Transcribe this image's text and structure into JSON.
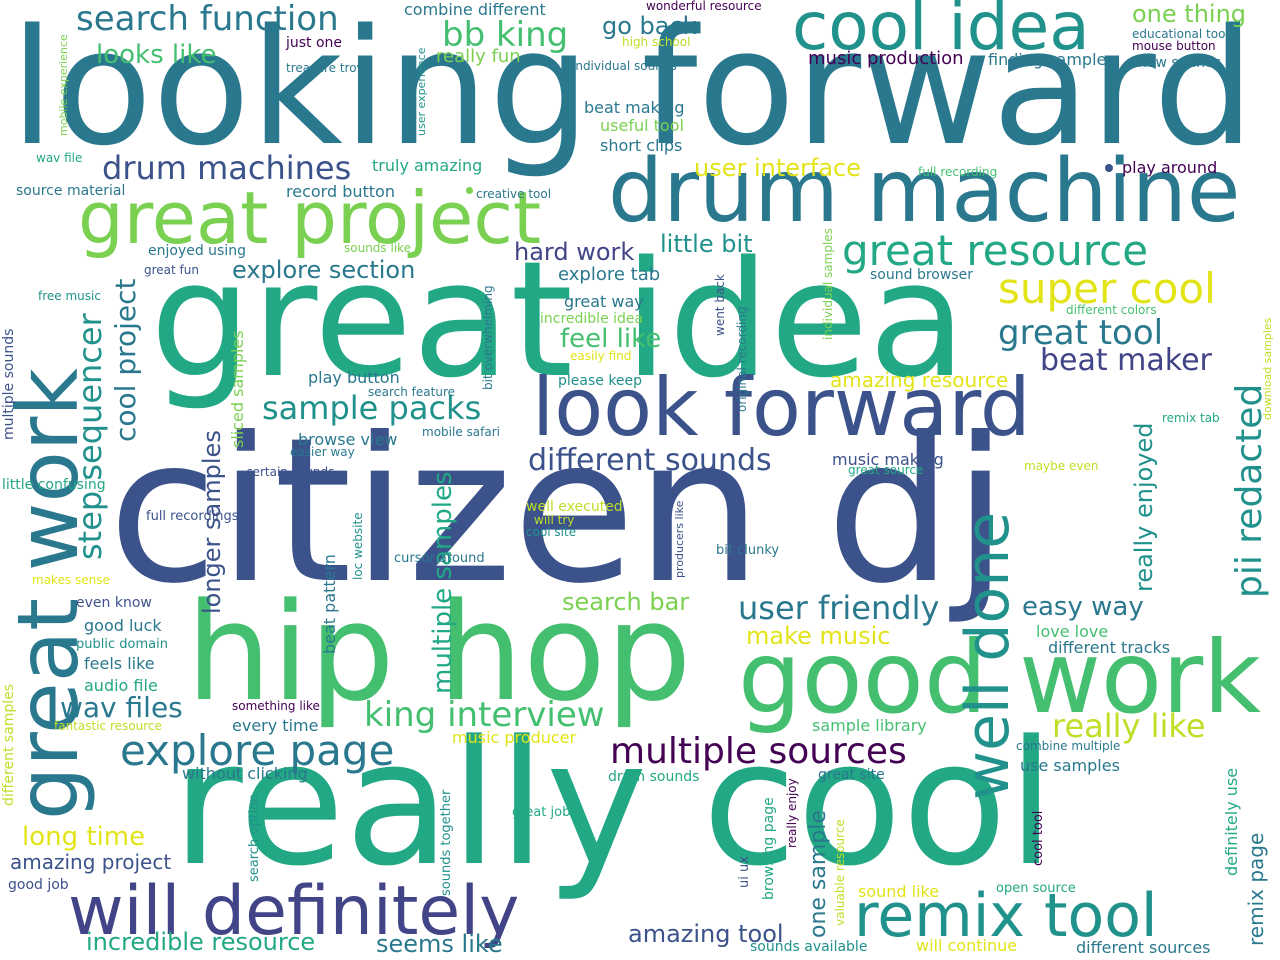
{
  "palette": {
    "dark_purple": "#440154",
    "indigo": "#414487",
    "blue": "#3b528b",
    "steel": "#31688e",
    "teal": "#2a788e",
    "sea": "#21918c",
    "green_teal": "#22a884",
    "green": "#44bf70",
    "light_green": "#7ad151",
    "lime": "#bddf26",
    "yellow": "#e2e418"
  },
  "words": [
    {
      "text": "looking forward"
    },
    {
      "text": "citizen dj"
    },
    {
      "text": "really cool"
    },
    {
      "text": "great idea"
    },
    {
      "text": "hip hop"
    },
    {
      "text": "drum machine"
    },
    {
      "text": "good work"
    },
    {
      "text": "look forward"
    },
    {
      "text": "great work"
    },
    {
      "text": "great project"
    },
    {
      "text": "cool idea"
    },
    {
      "text": "will definitely"
    },
    {
      "text": "remix tool"
    },
    {
      "text": "well done"
    },
    {
      "text": "explore page"
    },
    {
      "text": "great resource"
    },
    {
      "text": "super cool"
    },
    {
      "text": "multiple sources"
    },
    {
      "text": "king interview"
    },
    {
      "text": "pii redacted"
    },
    {
      "text": "step sequencer"
    },
    {
      "text": "search function"
    },
    {
      "text": "drum machines"
    },
    {
      "text": "different sounds"
    },
    {
      "text": "user friendly"
    },
    {
      "text": "sample packs"
    },
    {
      "text": "great tool"
    },
    {
      "text": "really like"
    },
    {
      "text": "bb king"
    },
    {
      "text": "cool project"
    },
    {
      "text": "beat maker"
    },
    {
      "text": "multiple samples"
    },
    {
      "text": "longer samples"
    },
    {
      "text": "wav files"
    },
    {
      "text": "feel like"
    },
    {
      "text": "easy way"
    },
    {
      "text": "looks like"
    },
    {
      "text": "long time"
    },
    {
      "text": "really enjoyed"
    },
    {
      "text": "explore section"
    },
    {
      "text": "hard work"
    },
    {
      "text": "one thing"
    },
    {
      "text": "go back"
    },
    {
      "text": "user interface"
    },
    {
      "text": "little bit"
    },
    {
      "text": "search bar"
    },
    {
      "text": "make music"
    },
    {
      "text": "incredible resource"
    },
    {
      "text": "seems like"
    },
    {
      "text": "amazing tool"
    },
    {
      "text": "one sample"
    },
    {
      "text": "remix page"
    },
    {
      "text": "amazing project"
    },
    {
      "text": "amazing resource"
    },
    {
      "text": "really fun"
    },
    {
      "text": "music production"
    },
    {
      "text": "finding samples"
    },
    {
      "text": "combine different"
    },
    {
      "text": "explore tab"
    },
    {
      "text": "great way"
    },
    {
      "text": "beat making"
    },
    {
      "text": "useful tool"
    },
    {
      "text": "short clips"
    },
    {
      "text": "truly amazing"
    },
    {
      "text": "record button"
    },
    {
      "text": "play button"
    },
    {
      "text": "browse view"
    },
    {
      "text": "music making"
    },
    {
      "text": "incredible idea"
    },
    {
      "text": "please keep"
    },
    {
      "text": "source material"
    },
    {
      "text": "enjoyed using"
    },
    {
      "text": "just one"
    },
    {
      "text": "new sounds"
    },
    {
      "text": "play around"
    },
    {
      "text": "sound browser"
    },
    {
      "text": "well executed"
    },
    {
      "text": "love love"
    },
    {
      "text": "different tracks"
    },
    {
      "text": "sample library"
    },
    {
      "text": "music producer"
    },
    {
      "text": "use samples"
    },
    {
      "text": "great site"
    },
    {
      "text": "drum sounds"
    },
    {
      "text": "without clicking"
    },
    {
      "text": "every time"
    },
    {
      "text": "audio file"
    },
    {
      "text": "feels like"
    },
    {
      "text": "good luck"
    },
    {
      "text": "even know"
    },
    {
      "text": "beat pattern"
    },
    {
      "text": "sliced samples"
    },
    {
      "text": "full recordings"
    },
    {
      "text": "little confusing"
    },
    {
      "text": "multiple sounds"
    },
    {
      "text": "different samples"
    },
    {
      "text": "good job"
    },
    {
      "text": "public domain"
    },
    {
      "text": "cursor around"
    },
    {
      "text": "bit clunky"
    },
    {
      "text": "sound like"
    },
    {
      "text": "will continue"
    },
    {
      "text": "different sources"
    },
    {
      "text": "sounds available"
    },
    {
      "text": "great job"
    },
    {
      "text": "definitely use"
    },
    {
      "text": "cool tool"
    },
    {
      "text": "open source"
    },
    {
      "text": "ui ux"
    },
    {
      "text": "browsing page"
    },
    {
      "text": "really enjoy"
    },
    {
      "text": "valuable resource"
    },
    {
      "text": "search option"
    },
    {
      "text": "sounds together"
    },
    {
      "text": "combine multiple"
    },
    {
      "text": "something like"
    },
    {
      "text": "fantastic resource"
    },
    {
      "text": "makes sense"
    },
    {
      "text": "wonderful resource"
    },
    {
      "text": "high school"
    },
    {
      "text": "educational tool"
    },
    {
      "text": "mouse button"
    },
    {
      "text": "individual sounds"
    },
    {
      "text": "treasure trove"
    },
    {
      "text": "mobile experience"
    },
    {
      "text": "user experience"
    },
    {
      "text": "wav file"
    },
    {
      "text": "full recording"
    },
    {
      "text": "creative tool"
    },
    {
      "text": "sounds like"
    },
    {
      "text": "great fun"
    },
    {
      "text": "free music"
    },
    {
      "text": "easily find"
    },
    {
      "text": "bit overwhelming"
    },
    {
      "text": "went back"
    },
    {
      "text": "original recording"
    },
    {
      "text": "individual samples"
    },
    {
      "text": "different colors"
    },
    {
      "text": "download samples"
    },
    {
      "text": "remix tab"
    },
    {
      "text": "search feature"
    },
    {
      "text": "mobile safari"
    },
    {
      "text": "easier way"
    },
    {
      "text": "certain sounds"
    },
    {
      "text": "great source"
    },
    {
      "text": "maybe even"
    },
    {
      "text": "will try"
    },
    {
      "text": "cool site"
    },
    {
      "text": "producers like"
    },
    {
      "text": "loc website"
    }
  ]
}
